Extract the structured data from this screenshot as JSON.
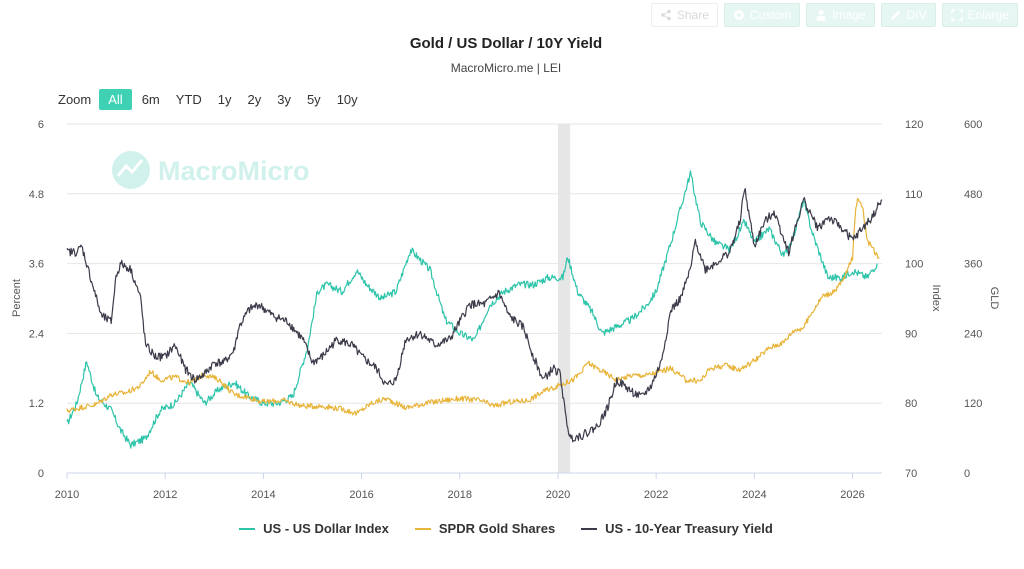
{
  "toolbar": {
    "share": "Share",
    "custom": "Custom",
    "image": "Image",
    "div": "DIV",
    "enlarge": "Enlarge"
  },
  "zoom": {
    "label": "Zoom",
    "options": [
      "All",
      "6m",
      "YTD",
      "1y",
      "2y",
      "3y",
      "5y",
      "10y"
    ],
    "selected": "All"
  },
  "watermark": "MacroMicro",
  "colors": {
    "dollar": "#2ec4aa",
    "gold": "#e8b43a",
    "yield": "#3b3b4a",
    "accent": "#3fd1b4",
    "recession": "#e6e6e6"
  },
  "chart_data": {
    "type": "line",
    "title": "Gold / US Dollar / 10Y Yield",
    "subtitle": "MacroMicro.me | LEI",
    "x_ticks": [
      "2010",
      "2012",
      "2014",
      "2016",
      "2018",
      "2020",
      "2022",
      "2024",
      "2026"
    ],
    "xlim": [
      2010.0,
      2026.6
    ],
    "recession_band": [
      2020.0,
      2020.25
    ],
    "axes": {
      "left": {
        "label": "Percent",
        "min": 0,
        "max": 6,
        "ticks": [
          "0",
          "1.2",
          "2.4",
          "3.6",
          "4.8",
          "6"
        ]
      },
      "right_index": {
        "label": "Index",
        "min": 70,
        "max": 120,
        "ticks": [
          "70",
          "80",
          "90",
          "100",
          "110",
          "120"
        ]
      },
      "right_gld": {
        "label": "GLD",
        "min": 0,
        "max": 600,
        "ticks": [
          "0",
          "120",
          "240",
          "360",
          "480",
          "600"
        ]
      }
    },
    "grid": true,
    "legend_position": "bottom",
    "series": [
      {
        "name": "US - US Dollar Index",
        "axis": "right_index",
        "points": [
          [
            2010.0,
            77
          ],
          [
            2010.2,
            80
          ],
          [
            2010.4,
            86
          ],
          [
            2010.6,
            81
          ],
          [
            2010.9,
            79
          ],
          [
            2011.1,
            76
          ],
          [
            2011.3,
            74
          ],
          [
            2011.6,
            75
          ],
          [
            2011.9,
            79
          ],
          [
            2012.2,
            80
          ],
          [
            2012.5,
            83
          ],
          [
            2012.8,
            80
          ],
          [
            2013.1,
            82
          ],
          [
            2013.4,
            83
          ],
          [
            2013.7,
            81
          ],
          [
            2014.0,
            80
          ],
          [
            2014.3,
            80
          ],
          [
            2014.6,
            81
          ],
          [
            2014.9,
            88
          ],
          [
            2015.1,
            96
          ],
          [
            2015.3,
            97
          ],
          [
            2015.6,
            96
          ],
          [
            2015.9,
            99
          ],
          [
            2016.1,
            97
          ],
          [
            2016.4,
            95
          ],
          [
            2016.7,
            96
          ],
          [
            2016.9,
            100
          ],
          [
            2017.0,
            102
          ],
          [
            2017.4,
            99
          ],
          [
            2017.7,
            92
          ],
          [
            2018.0,
            90
          ],
          [
            2018.3,
            89
          ],
          [
            2018.6,
            94
          ],
          [
            2018.9,
            96
          ],
          [
            2019.2,
            97
          ],
          [
            2019.5,
            97
          ],
          [
            2019.8,
            98
          ],
          [
            2020.1,
            98
          ],
          [
            2020.2,
            101
          ],
          [
            2020.4,
            96
          ],
          [
            2020.7,
            93
          ],
          [
            2020.9,
            90
          ],
          [
            2021.2,
            91
          ],
          [
            2021.5,
            92
          ],
          [
            2021.8,
            94
          ],
          [
            2022.0,
            96
          ],
          [
            2022.3,
            103
          ],
          [
            2022.5,
            108
          ],
          [
            2022.7,
            113
          ],
          [
            2022.9,
            106
          ],
          [
            2023.2,
            103
          ],
          [
            2023.5,
            102
          ],
          [
            2023.8,
            106
          ],
          [
            2024.0,
            103
          ],
          [
            2024.3,
            105
          ],
          [
            2024.6,
            101
          ],
          [
            2024.8,
            104
          ],
          [
            2025.0,
            109
          ],
          [
            2025.2,
            104
          ],
          [
            2025.5,
            98
          ],
          [
            2025.8,
            98
          ],
          [
            2026.0,
            99
          ],
          [
            2026.3,
            98
          ],
          [
            2026.5,
            100
          ]
        ]
      },
      {
        "name": "SPDR Gold Shares",
        "axis": "right_gld",
        "points": [
          [
            2010.0,
            107
          ],
          [
            2010.3,
            113
          ],
          [
            2010.6,
            118
          ],
          [
            2010.9,
            135
          ],
          [
            2011.2,
            138
          ],
          [
            2011.5,
            150
          ],
          [
            2011.7,
            175
          ],
          [
            2011.9,
            160
          ],
          [
            2012.2,
            165
          ],
          [
            2012.5,
            155
          ],
          [
            2012.8,
            170
          ],
          [
            2013.1,
            160
          ],
          [
            2013.4,
            135
          ],
          [
            2013.7,
            130
          ],
          [
            2014.0,
            122
          ],
          [
            2014.4,
            125
          ],
          [
            2014.8,
            115
          ],
          [
            2015.2,
            115
          ],
          [
            2015.6,
            110
          ],
          [
            2015.9,
            102
          ],
          [
            2016.2,
            120
          ],
          [
            2016.5,
            128
          ],
          [
            2016.9,
            112
          ],
          [
            2017.3,
            120
          ],
          [
            2017.7,
            125
          ],
          [
            2018.0,
            128
          ],
          [
            2018.4,
            125
          ],
          [
            2018.7,
            115
          ],
          [
            2019.0,
            122
          ],
          [
            2019.4,
            125
          ],
          [
            2019.7,
            140
          ],
          [
            2020.0,
            150
          ],
          [
            2020.3,
            160
          ],
          [
            2020.5,
            175
          ],
          [
            2020.6,
            190
          ],
          [
            2020.9,
            175
          ],
          [
            2021.2,
            160
          ],
          [
            2021.5,
            168
          ],
          [
            2021.8,
            168
          ],
          [
            2022.1,
            175
          ],
          [
            2022.3,
            180
          ],
          [
            2022.6,
            160
          ],
          [
            2022.9,
            158
          ],
          [
            2023.1,
            180
          ],
          [
            2023.4,
            185
          ],
          [
            2023.7,
            178
          ],
          [
            2023.9,
            188
          ],
          [
            2024.1,
            200
          ],
          [
            2024.3,
            215
          ],
          [
            2024.6,
            225
          ],
          [
            2024.8,
            245
          ],
          [
            2025.0,
            250
          ],
          [
            2025.2,
            280
          ],
          [
            2025.4,
            305
          ],
          [
            2025.6,
            310
          ],
          [
            2025.8,
            330
          ],
          [
            2026.0,
            370
          ],
          [
            2026.05,
            440
          ],
          [
            2026.1,
            475
          ],
          [
            2026.2,
            460
          ],
          [
            2026.3,
            400
          ],
          [
            2026.45,
            380
          ],
          [
            2026.55,
            370
          ]
        ]
      },
      {
        "name": "US - 10-Year Treasury Yield",
        "axis": "left",
        "points": [
          [
            2010.0,
            3.8
          ],
          [
            2010.2,
            3.8
          ],
          [
            2010.3,
            3.9
          ],
          [
            2010.5,
            3.3
          ],
          [
            2010.7,
            2.7
          ],
          [
            2010.9,
            2.6
          ],
          [
            2011.0,
            3.4
          ],
          [
            2011.1,
            3.6
          ],
          [
            2011.3,
            3.5
          ],
          [
            2011.5,
            3.0
          ],
          [
            2011.6,
            2.2
          ],
          [
            2011.8,
            2.0
          ],
          [
            2012.0,
            2.0
          ],
          [
            2012.2,
            2.2
          ],
          [
            2012.4,
            1.8
          ],
          [
            2012.6,
            1.6
          ],
          [
            2012.8,
            1.7
          ],
          [
            2013.0,
            1.9
          ],
          [
            2013.2,
            1.9
          ],
          [
            2013.4,
            2.1
          ],
          [
            2013.5,
            2.5
          ],
          [
            2013.7,
            2.8
          ],
          [
            2013.9,
            2.9
          ],
          [
            2014.2,
            2.7
          ],
          [
            2014.5,
            2.6
          ],
          [
            2014.8,
            2.3
          ],
          [
            2015.0,
            1.9
          ],
          [
            2015.2,
            2.0
          ],
          [
            2015.5,
            2.3
          ],
          [
            2015.8,
            2.2
          ],
          [
            2016.0,
            2.0
          ],
          [
            2016.3,
            1.8
          ],
          [
            2016.5,
            1.5
          ],
          [
            2016.7,
            1.6
          ],
          [
            2016.9,
            2.3
          ],
          [
            2017.2,
            2.4
          ],
          [
            2017.5,
            2.2
          ],
          [
            2017.8,
            2.3
          ],
          [
            2018.0,
            2.6
          ],
          [
            2018.2,
            2.9
          ],
          [
            2018.5,
            2.9
          ],
          [
            2018.8,
            3.1
          ],
          [
            2019.0,
            2.7
          ],
          [
            2019.3,
            2.5
          ],
          [
            2019.5,
            2.0
          ],
          [
            2019.7,
            1.6
          ],
          [
            2019.9,
            1.8
          ],
          [
            2020.05,
            1.7
          ],
          [
            2020.15,
            1.0
          ],
          [
            2020.25,
            0.6
          ],
          [
            2020.5,
            0.65
          ],
          [
            2020.8,
            0.8
          ],
          [
            2021.0,
            1.1
          ],
          [
            2021.2,
            1.6
          ],
          [
            2021.5,
            1.4
          ],
          [
            2021.7,
            1.3
          ],
          [
            2021.9,
            1.5
          ],
          [
            2022.1,
            1.9
          ],
          [
            2022.3,
            2.8
          ],
          [
            2022.5,
            3.0
          ],
          [
            2022.7,
            3.5
          ],
          [
            2022.8,
            4.0
          ],
          [
            2023.0,
            3.5
          ],
          [
            2023.2,
            3.6
          ],
          [
            2023.5,
            3.8
          ],
          [
            2023.7,
            4.3
          ],
          [
            2023.8,
            4.9
          ],
          [
            2024.0,
            3.9
          ],
          [
            2024.2,
            4.3
          ],
          [
            2024.4,
            4.5
          ],
          [
            2024.7,
            3.8
          ],
          [
            2024.9,
            4.4
          ],
          [
            2025.0,
            4.7
          ],
          [
            2025.3,
            4.2
          ],
          [
            2025.5,
            4.4
          ],
          [
            2025.8,
            4.2
          ],
          [
            2026.0,
            4.0
          ],
          [
            2026.2,
            4.2
          ],
          [
            2026.4,
            4.4
          ],
          [
            2026.6,
            4.7
          ]
        ]
      }
    ]
  }
}
